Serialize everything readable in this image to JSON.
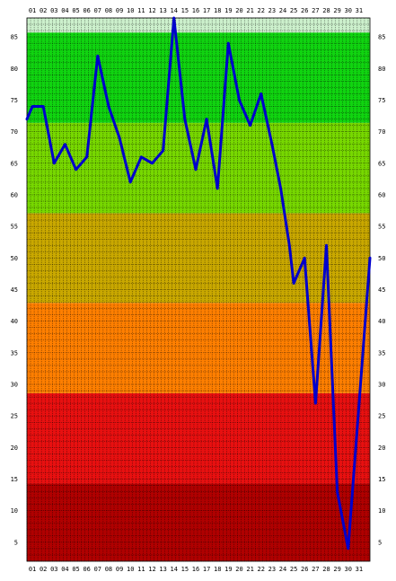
{
  "chart_data": {
    "type": "line",
    "title": "",
    "xlabel": "",
    "ylabel": "",
    "x": [
      "01",
      "02",
      "03",
      "04",
      "05",
      "06",
      "07",
      "08",
      "09",
      "10",
      "11",
      "12",
      "13",
      "14",
      "15",
      "16",
      "17",
      "18",
      "19",
      "20",
      "21",
      "22",
      "23",
      "24",
      "25",
      "26",
      "27",
      "28",
      "29",
      "30",
      "31"
    ],
    "series": [
      {
        "values": [
          72,
          74,
          74,
          65,
          68,
          64,
          66,
          82,
          74,
          69,
          62,
          66,
          65,
          67,
          88,
          72,
          64,
          72,
          61,
          84,
          75,
          71,
          76,
          68,
          61,
          52,
          46,
          50,
          27,
          52,
          13,
          4,
          27,
          50
        ],
        "color": "#0000cc"
      }
    ],
    "x_values": [
      0.5,
      1,
      2,
      3,
      4,
      5,
      6,
      7,
      8,
      9,
      10,
      11,
      12,
      13,
      14,
      15,
      16,
      17,
      18,
      19,
      20,
      21,
      22,
      23,
      23.8,
      24.6,
      25,
      26,
      27,
      28,
      29,
      30,
      31,
      32
    ],
    "yticks": [
      5,
      10,
      15,
      20,
      25,
      30,
      35,
      40,
      45,
      50,
      55,
      60,
      65,
      70,
      75,
      80,
      85
    ],
    "ylim": [
      2,
      88
    ],
    "xlim": [
      0.5,
      32
    ],
    "grid": true,
    "bands": [
      {
        "from": 2,
        "to": 14.3,
        "color": "#b00000"
      },
      {
        "from": 14.3,
        "to": 28.6,
        "color": "#e81010"
      },
      {
        "from": 28.6,
        "to": 42.9,
        "color": "#ff7f00"
      },
      {
        "from": 42.9,
        "to": 57.1,
        "color": "#c9a800"
      },
      {
        "from": 57.1,
        "to": 71.4,
        "color": "#77d800"
      },
      {
        "from": 71.4,
        "to": 85.7,
        "color": "#10d410"
      },
      {
        "from": 85.7,
        "to": 88,
        "color": "#ccf0cc"
      }
    ],
    "colors": {
      "grid": "#000000",
      "line": "#0000cc"
    }
  }
}
